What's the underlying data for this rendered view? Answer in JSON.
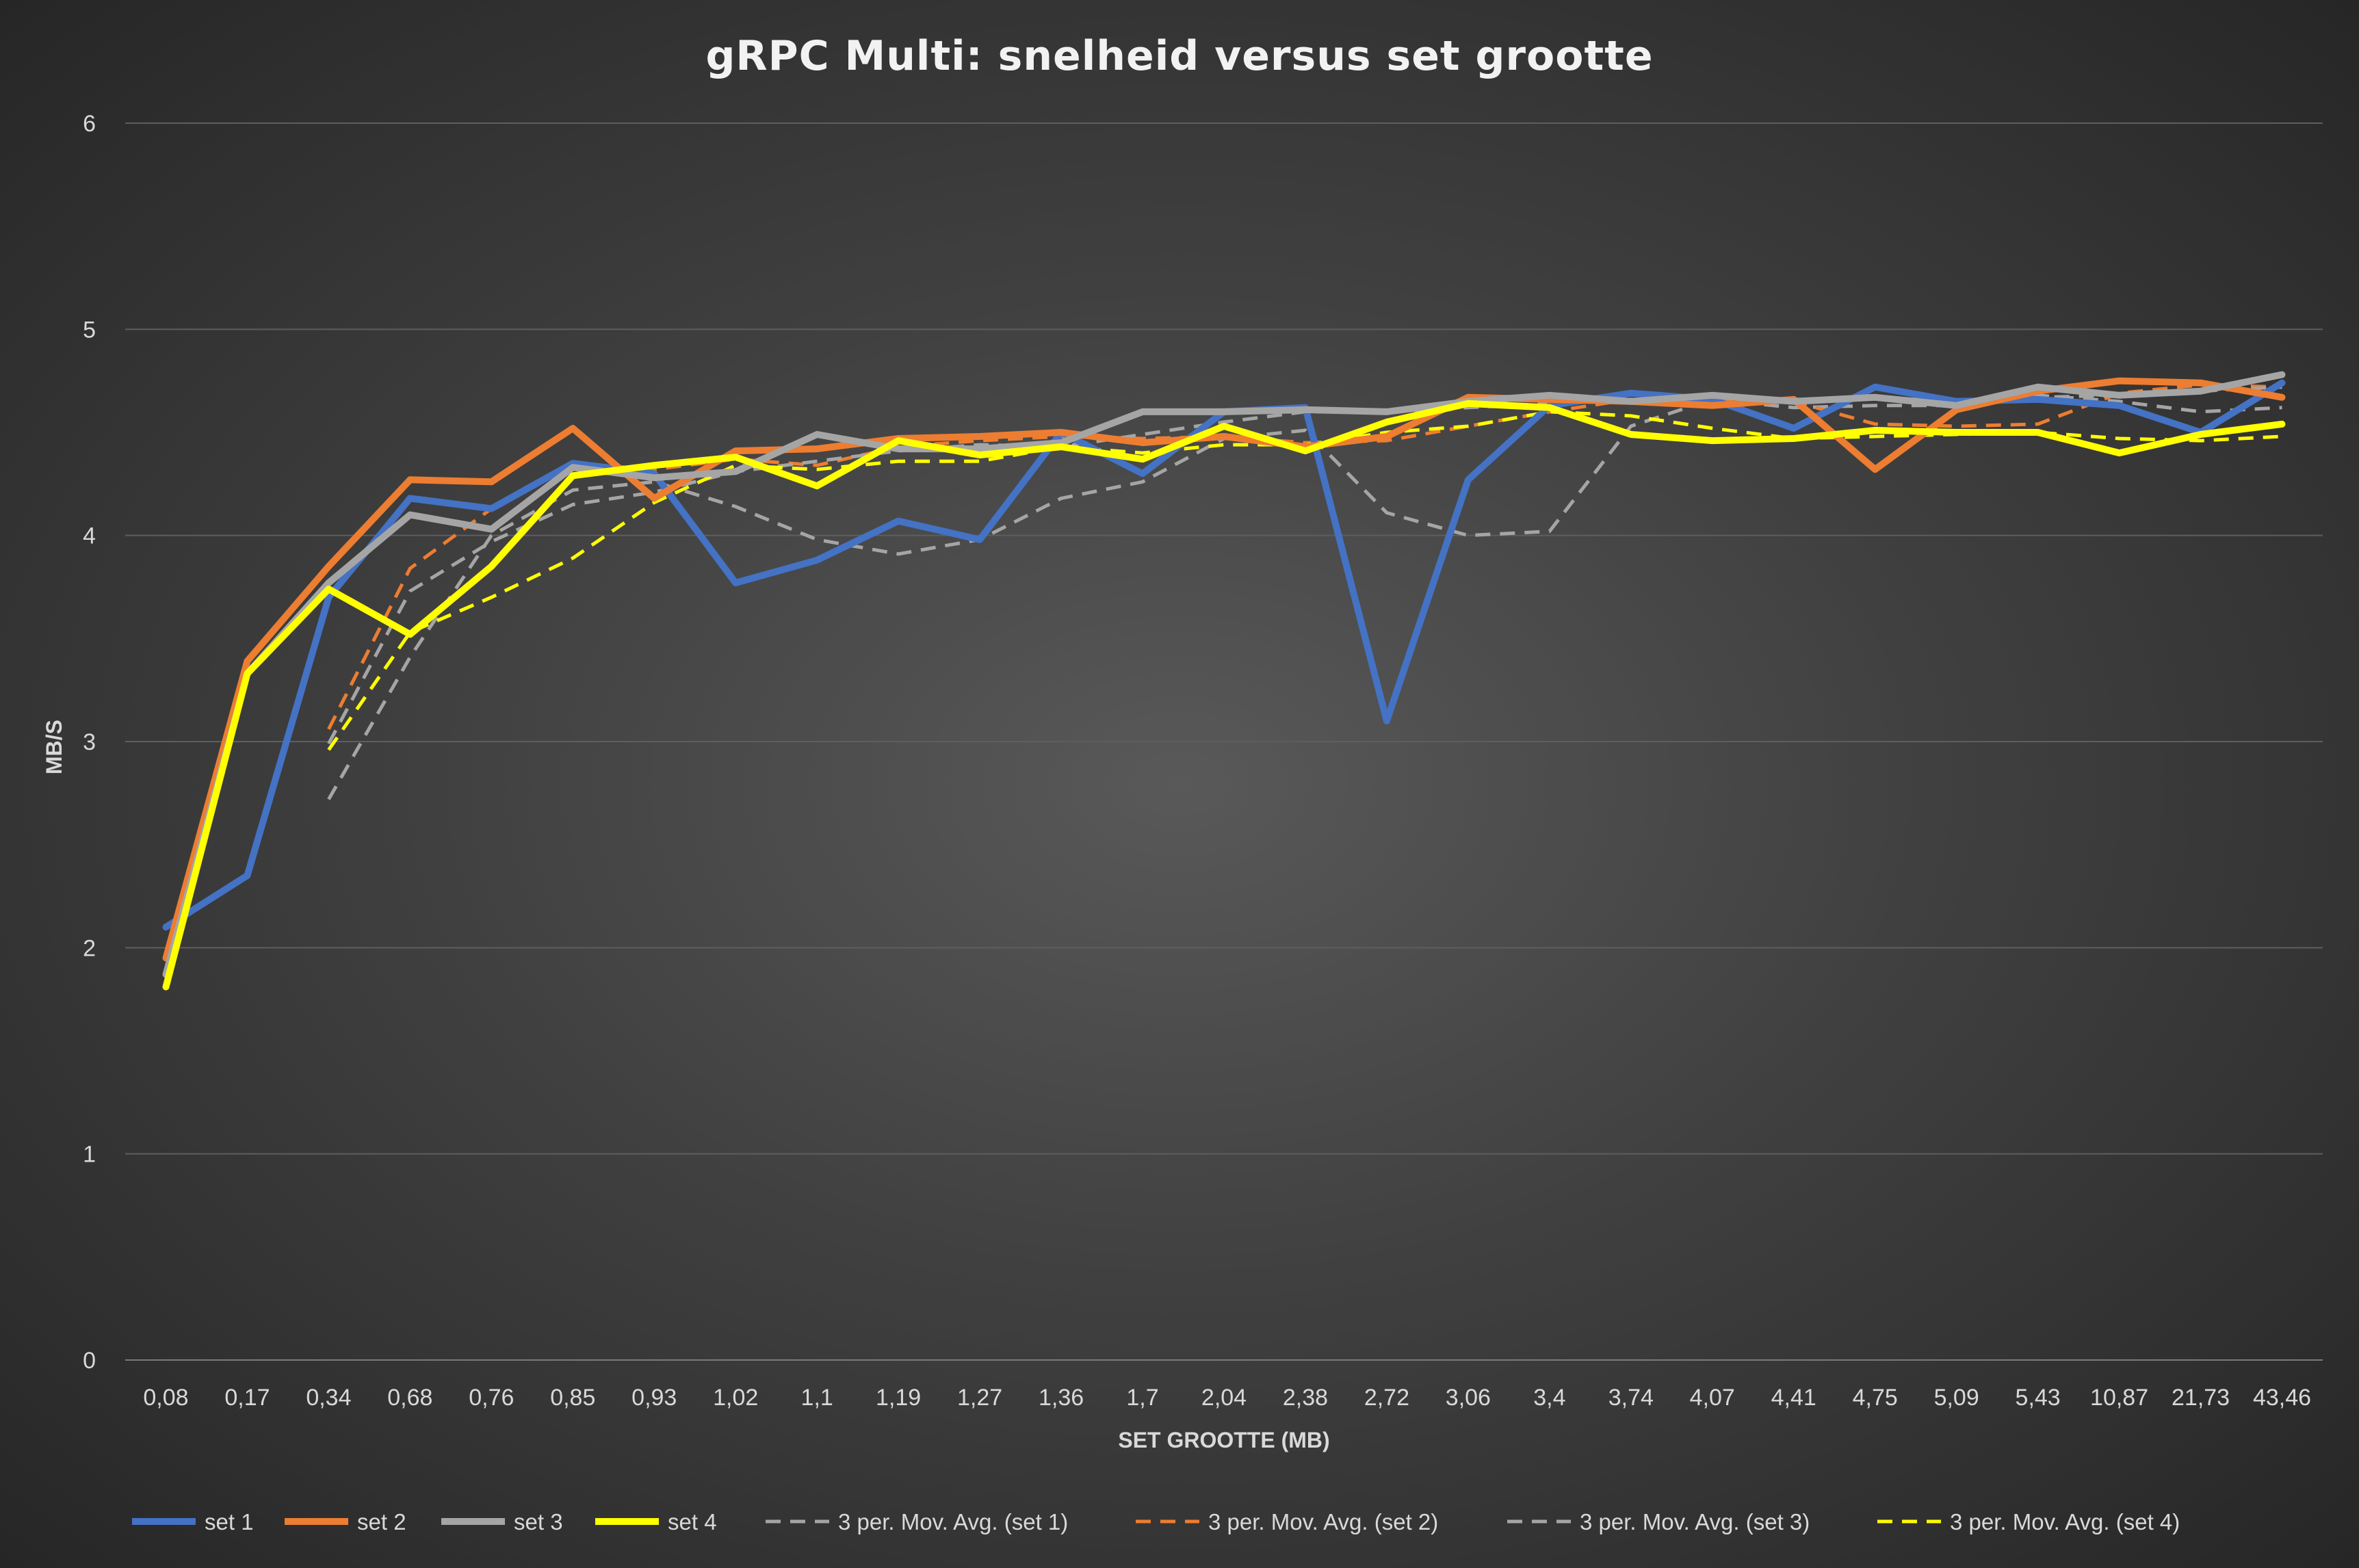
{
  "chart_data": {
    "type": "line",
    "title": "gRPC Multi: snelheid versus set grootte",
    "xlabel": "SET GROOTTE (MB)",
    "ylabel": "MB/S",
    "ylim": [
      0,
      6
    ],
    "yticks": [
      "0",
      "1",
      "2",
      "3",
      "4",
      "5",
      "6"
    ],
    "grid": true,
    "legend_position": "bottom",
    "categories": [
      "0,08",
      "0,17",
      "0,34",
      "0,68",
      "0,76",
      "0,85",
      "0,93",
      "1,02",
      "1,1",
      "1,19",
      "1,27",
      "1,36",
      "1,7",
      "2,04",
      "2,38",
      "2,72",
      "3,06",
      "3,4",
      "3,74",
      "4,07",
      "4,41",
      "4,75",
      "5,09",
      "5,43",
      "10,87",
      "21,73",
      "43,46"
    ],
    "series": [
      {
        "name": "set 1",
        "color": "#4472c4",
        "dashed": false,
        "values": [
          2.1,
          2.35,
          3.7,
          4.18,
          4.13,
          4.35,
          4.3,
          3.77,
          3.88,
          4.07,
          3.98,
          4.5,
          4.3,
          4.6,
          4.62,
          3.1,
          4.27,
          4.63,
          4.69,
          4.66,
          4.52,
          4.72,
          4.65,
          4.66,
          4.63,
          4.5,
          4.74
        ]
      },
      {
        "name": "set 2",
        "color": "#ed7d31",
        "dashed": false,
        "values": [
          1.95,
          3.39,
          3.85,
          4.27,
          4.26,
          4.52,
          4.18,
          4.41,
          4.42,
          4.47,
          4.48,
          4.5,
          4.45,
          4.48,
          4.43,
          4.48,
          4.67,
          4.66,
          4.65,
          4.63,
          4.66,
          4.32,
          4.61,
          4.7,
          4.75,
          4.74,
          4.67
        ]
      },
      {
        "name": "set 3",
        "color": "#a5a5a5",
        "dashed": false,
        "values": [
          1.87,
          3.33,
          3.77,
          4.1,
          4.03,
          4.33,
          4.28,
          4.31,
          4.49,
          4.42,
          4.42,
          4.45,
          4.6,
          4.6,
          4.61,
          4.6,
          4.65,
          4.68,
          4.65,
          4.68,
          4.65,
          4.67,
          4.63,
          4.72,
          4.68,
          4.7,
          4.78
        ]
      },
      {
        "name": "set 4",
        "color": "#ffff00",
        "dashed": false,
        "values": [
          1.81,
          3.33,
          3.74,
          3.52,
          3.85,
          4.29,
          4.34,
          4.38,
          4.24,
          4.46,
          4.39,
          4.43,
          4.37,
          4.53,
          4.41,
          4.55,
          4.64,
          4.62,
          4.49,
          4.46,
          4.47,
          4.51,
          4.5,
          4.5,
          4.4,
          4.49,
          4.54
        ]
      },
      {
        "name": "3 per. Mov. Avg. (set 1)",
        "color": "#a5a5a5",
        "dashed": true,
        "values": [
          null,
          null,
          2.72,
          3.41,
          4.0,
          4.22,
          4.26,
          4.14,
          3.98,
          3.91,
          3.98,
          4.18,
          4.26,
          4.47,
          4.51,
          4.11,
          4.0,
          4.02,
          4.53,
          4.66,
          4.62,
          4.63,
          4.63,
          4.68,
          4.65,
          4.6,
          4.62
        ]
      },
      {
        "name": "3 per. Mov. Avg. (set 2)",
        "color": "#ed7d31",
        "dashed": true,
        "values": [
          null,
          null,
          3.06,
          3.84,
          4.13,
          4.35,
          4.32,
          4.37,
          4.34,
          4.43,
          4.46,
          4.48,
          4.47,
          4.48,
          4.45,
          4.46,
          4.53,
          4.6,
          4.66,
          4.65,
          4.65,
          4.54,
          4.53,
          4.54,
          4.69,
          4.73,
          4.72
        ]
      },
      {
        "name": "3 per. Mov. Avg. (set 3)",
        "color": "#a5a5a5",
        "dashed": true,
        "values": [
          null,
          null,
          2.99,
          3.73,
          3.97,
          4.15,
          4.21,
          4.31,
          4.36,
          4.41,
          4.44,
          4.43,
          4.49,
          4.55,
          4.6,
          4.6,
          4.62,
          4.64,
          4.66,
          4.67,
          4.66,
          4.67,
          4.65,
          4.67,
          4.68,
          4.7,
          4.72
        ]
      },
      {
        "name": "3 per. Mov. Avg. (set 4)",
        "color": "#ffff00",
        "dashed": true,
        "values": [
          null,
          null,
          2.96,
          3.53,
          3.7,
          3.89,
          4.16,
          4.34,
          4.32,
          4.36,
          4.36,
          4.43,
          4.4,
          4.44,
          4.44,
          4.5,
          4.53,
          4.6,
          4.58,
          4.52,
          4.47,
          4.48,
          4.49,
          4.5,
          4.47,
          4.46,
          4.48
        ]
      }
    ]
  }
}
